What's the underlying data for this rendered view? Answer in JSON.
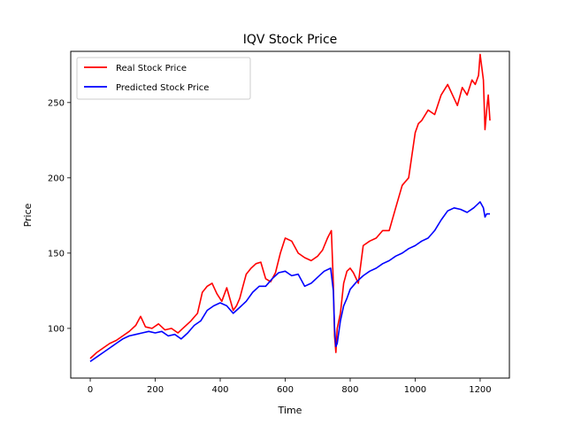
{
  "chart_data": {
    "type": "line",
    "title": "IQV Stock Price",
    "xlabel": "Time",
    "ylabel": "Price",
    "xlim": [
      -60,
      1290
    ],
    "ylim": [
      67,
      284
    ],
    "xticks": [
      0,
      200,
      400,
      600,
      800,
      1000,
      1200
    ],
    "yticks": [
      100,
      150,
      200,
      250
    ],
    "legend_position": "upper-left",
    "grid": false,
    "series": [
      {
        "name": "Real Stock Price",
        "color": "#ff0000",
        "x": [
          0,
          20,
          40,
          60,
          80,
          100,
          120,
          140,
          155,
          170,
          190,
          210,
          230,
          250,
          270,
          290,
          310,
          330,
          345,
          360,
          375,
          390,
          405,
          420,
          440,
          450,
          460,
          470,
          480,
          495,
          510,
          525,
          540,
          555,
          570,
          585,
          600,
          620,
          640,
          660,
          680,
          700,
          715,
          730,
          742,
          748,
          752,
          756,
          760,
          770,
          780,
          790,
          800,
          810,
          825,
          840,
          860,
          880,
          900,
          920,
          940,
          960,
          980,
          1000,
          1010,
          1020,
          1040,
          1060,
          1080,
          1100,
          1115,
          1130,
          1145,
          1160,
          1175,
          1185,
          1195,
          1200,
          1210,
          1215,
          1220,
          1225,
          1230
        ],
        "y": [
          80,
          84,
          87,
          90,
          92,
          95,
          98,
          102,
          108,
          101,
          100,
          103,
          99,
          100,
          97,
          101,
          105,
          110,
          124,
          128,
          130,
          123,
          118,
          127,
          112,
          115,
          120,
          128,
          136,
          140,
          143,
          144,
          133,
          131,
          137,
          150,
          160,
          158,
          150,
          147,
          145,
          148,
          152,
          160,
          165,
          130,
          95,
          84,
          100,
          110,
          130,
          138,
          140,
          137,
          130,
          155,
          158,
          160,
          165,
          165,
          180,
          195,
          200,
          230,
          236,
          238,
          245,
          242,
          255,
          262,
          255,
          248,
          260,
          255,
          265,
          262,
          268,
          282,
          265,
          232,
          245,
          255,
          238
        ]
      },
      {
        "name": "Predicted Stock Price",
        "color": "#0000ff",
        "x": [
          0,
          20,
          40,
          60,
          80,
          100,
          120,
          140,
          160,
          180,
          200,
          220,
          240,
          260,
          280,
          300,
          320,
          340,
          360,
          380,
          400,
          420,
          440,
          460,
          480,
          500,
          520,
          540,
          560,
          580,
          600,
          620,
          640,
          660,
          680,
          700,
          720,
          740,
          748,
          752,
          756,
          760,
          770,
          780,
          790,
          800,
          820,
          840,
          860,
          880,
          900,
          920,
          940,
          960,
          980,
          1000,
          1020,
          1040,
          1060,
          1080,
          1100,
          1120,
          1140,
          1160,
          1180,
          1195,
          1200,
          1210,
          1215,
          1220,
          1230
        ],
        "y": [
          78,
          81,
          84,
          87,
          90,
          93,
          95,
          96,
          97,
          98,
          97,
          98,
          95,
          96,
          93,
          97,
          102,
          105,
          112,
          115,
          117,
          115,
          110,
          114,
          118,
          124,
          128,
          128,
          133,
          137,
          138,
          135,
          136,
          128,
          130,
          134,
          138,
          140,
          125,
          100,
          88,
          90,
          105,
          115,
          120,
          126,
          131,
          135,
          138,
          140,
          143,
          145,
          148,
          150,
          153,
          155,
          158,
          160,
          165,
          172,
          178,
          180,
          179,
          177,
          180,
          183,
          184,
          180,
          174,
          176,
          176
        ]
      }
    ]
  }
}
